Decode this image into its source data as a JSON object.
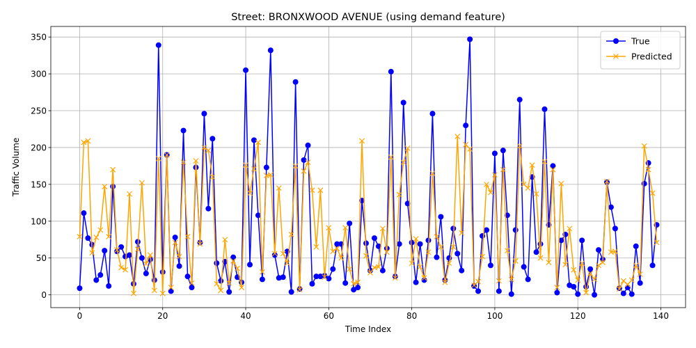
{
  "chart_data": {
    "type": "line",
    "title": "Street: BRONXWOOD AVENUE (using demand feature)",
    "xlabel": "Time Index",
    "ylabel": "Traffic Volume",
    "xlim": [
      -6.95,
      145.95
    ],
    "ylim": [
      -17.35,
      364.35
    ],
    "xticks": [
      0,
      20,
      40,
      60,
      80,
      100,
      120,
      140
    ],
    "yticks": [
      0,
      50,
      100,
      150,
      200,
      250,
      300,
      350
    ],
    "grid": true,
    "legend_position": "top-right",
    "series": [
      {
        "name": "True",
        "color": "#0000ff",
        "marker": "circle",
        "values": [
          9,
          111,
          77,
          68,
          20,
          27,
          60,
          12,
          147,
          59,
          65,
          52,
          54,
          15,
          72,
          50,
          29,
          48,
          20,
          339,
          31,
          190,
          5,
          78,
          39,
          223,
          25,
          10,
          173,
          71,
          246,
          117,
          212,
          43,
          19,
          45,
          4,
          51,
          24,
          17,
          305,
          41,
          210,
          108,
          21,
          173,
          332,
          54,
          23,
          24,
          59,
          4,
          289,
          8,
          183,
          203,
          15,
          25,
          25,
          26,
          22,
          35,
          69,
          69,
          16,
          97,
          7,
          10,
          128,
          70,
          33,
          77,
          66,
          33,
          63,
          303,
          25,
          69,
          261,
          124,
          71,
          17,
          69,
          20,
          74,
          246,
          51,
          106,
          20,
          50,
          90,
          56,
          33,
          230,
          347,
          12,
          5,
          80,
          88,
          40,
          192,
          5,
          196,
          108,
          1,
          88,
          265,
          38,
          21,
          160,
          58,
          69,
          252,
          95,
          175,
          3,
          74,
          82,
          13,
          11,
          1,
          74,
          11,
          35,
          0,
          61,
          48,
          153,
          119,
          90,
          9,
          2,
          10,
          1,
          66,
          16,
          151,
          179,
          40,
          95
        ]
      },
      {
        "name": "Predicted",
        "color": "#ffa500",
        "marker": "x",
        "values": [
          79,
          207,
          209,
          57,
          78,
          88,
          147,
          79,
          170,
          61,
          37,
          34,
          137,
          2,
          62,
          152,
          42,
          54,
          6,
          185,
          2,
          190,
          10,
          71,
          52,
          180,
          79,
          16,
          182,
          69,
          200,
          196,
          160,
          15,
          6,
          75,
          16,
          46,
          36,
          10,
          176,
          138,
          171,
          207,
          31,
          162,
          163,
          56,
          145,
          56,
          43,
          82,
          175,
          7,
          168,
          180,
          142,
          65,
          142,
          24,
          91,
          59,
          63,
          50,
          91,
          35,
          15,
          17,
          209,
          53,
          30,
          37,
          38,
          90,
          58,
          187,
          23,
          136,
          180,
          199,
          43,
          76,
          38,
          23,
          58,
          165,
          79,
          65,
          17,
          43,
          65,
          215,
          84,
          204,
          198,
          13,
          18,
          52,
          150,
          139,
          163,
          19,
          170,
          60,
          21,
          46,
          202,
          150,
          145,
          176,
          137,
          50,
          181,
          44,
          170,
          10,
          151,
          41,
          90,
          34,
          20,
          43,
          3,
          29,
          21,
          40,
          44,
          154,
          58,
          59,
          8,
          19,
          14,
          20,
          40,
          28,
          202,
          170,
          138,
          71
        ]
      }
    ]
  }
}
